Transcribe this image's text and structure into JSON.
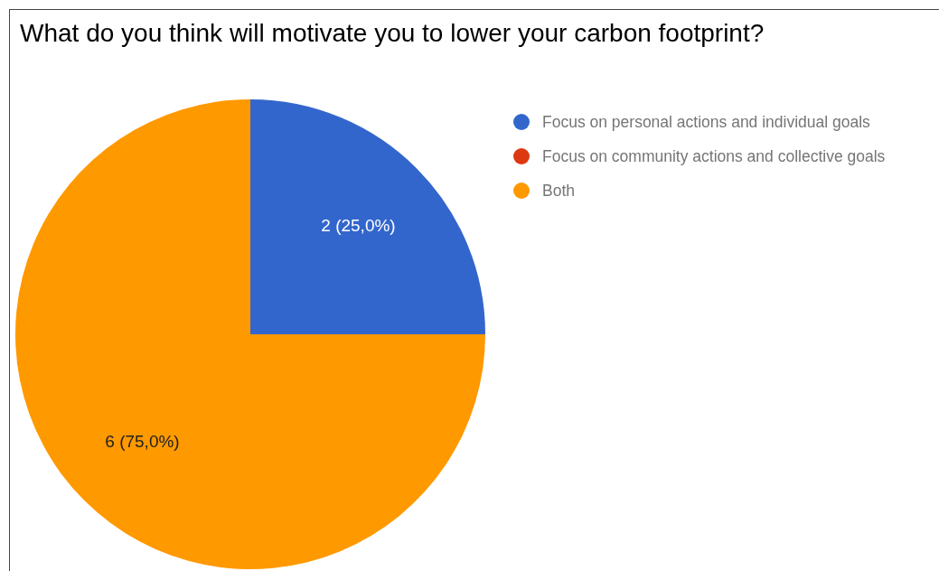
{
  "chart_data": {
    "type": "pie",
    "title": "What do you think will motivate you to lower your carbon footprint?",
    "categories": [
      "Focus on personal actions and individual goals",
      "Focus on community actions and collective goals",
      "Both"
    ],
    "values": [
      2,
      0,
      6
    ],
    "colors": [
      "#3366cc",
      "#dc3912",
      "#ff9900"
    ],
    "value_labels": [
      "2 (25,0%)",
      null,
      "6 (75,0%)"
    ],
    "legend": "right"
  }
}
